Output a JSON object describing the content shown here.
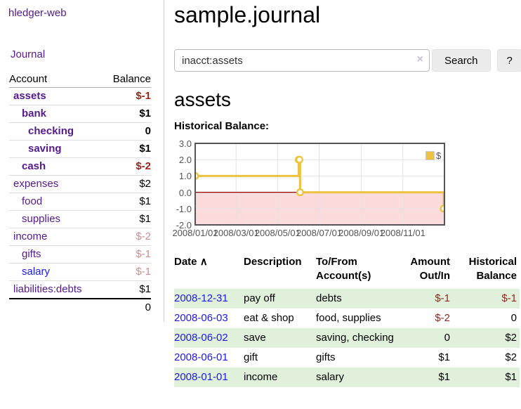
{
  "app": {
    "brand": "hledger-web",
    "nav": {
      "journal": "Journal"
    }
  },
  "sidebar": {
    "header": {
      "account": "Account",
      "balance": "Balance"
    },
    "accounts": [
      {
        "name": "assets",
        "balance": "$-1"
      },
      {
        "name": "bank",
        "balance": "$1"
      },
      {
        "name": "checking",
        "balance": "0"
      },
      {
        "name": "saving",
        "balance": "$1"
      },
      {
        "name": "cash",
        "balance": "$-2"
      },
      {
        "name": "expenses",
        "balance": "$2"
      },
      {
        "name": "food",
        "balance": "$1"
      },
      {
        "name": "supplies",
        "balance": "$1"
      },
      {
        "name": "income",
        "balance": "$-2"
      },
      {
        "name": "gifts",
        "balance": "$-1"
      },
      {
        "name": "salary",
        "balance": "$-1"
      },
      {
        "name": "liabilities:debts",
        "balance": "$1"
      }
    ],
    "total": "0"
  },
  "main": {
    "title": "sample.journal",
    "search": {
      "value": "inacct:assets",
      "clear_icon": "×",
      "search_button": "Search",
      "help_button": "?"
    },
    "account_heading": "assets",
    "chart_title": "Historical Balance:"
  },
  "chart_data": {
    "type": "line",
    "title": "Historical Balance:",
    "legend": {
      "label": "$",
      "position": "top-right"
    },
    "series": [
      {
        "name": "$",
        "color": "#edc240",
        "step": true,
        "points": [
          {
            "x": "2008-01-01",
            "y": 1
          },
          {
            "x": "2008-06-01",
            "y": 2
          },
          {
            "x": "2008-06-02",
            "y": 2
          },
          {
            "x": "2008-06-03",
            "y": 0
          },
          {
            "x": "2008-12-31",
            "y": -1
          }
        ]
      }
    ],
    "x_ticks": [
      "2008/01/01",
      "2008/03/01",
      "2008/05/01",
      "2008/07/01",
      "2008/09/01",
      "2008/11/01"
    ],
    "y_ticks": [
      3.0,
      2.0,
      1.0,
      0.0,
      -1.0,
      -2.0
    ],
    "xlim": [
      "2008-01-01",
      "2009-01-01"
    ],
    "ylim": [
      -2,
      3
    ],
    "grid": true,
    "colors": {
      "negative_region": "#fbdbdb",
      "zero_line": "#8b0000",
      "grid": "#e3e3e3",
      "border": "#555555"
    }
  },
  "register": {
    "headers": {
      "date": "Date",
      "description": "Description",
      "account": "To/From Account(s)",
      "amount": "Amount Out/In",
      "balance": "Historical Balance"
    },
    "sort_icon": "∧",
    "rows": [
      {
        "date": "2008-12-31",
        "description": "pay off",
        "accounts": "debts",
        "amount": "$-1",
        "balance": "$-1"
      },
      {
        "date": "2008-06-03",
        "description": "eat & shop",
        "accounts": "food, supplies",
        "amount": "$-2",
        "balance": "0"
      },
      {
        "date": "2008-06-02",
        "description": "save",
        "accounts": "saving, checking",
        "amount": "0",
        "balance": "$2"
      },
      {
        "date": "2008-06-01",
        "description": "gift",
        "accounts": "gifts",
        "amount": "$1",
        "balance": "$2"
      },
      {
        "date": "2008-01-01",
        "description": "income",
        "accounts": "salary",
        "amount": "$1",
        "balance": "$1"
      }
    ]
  }
}
